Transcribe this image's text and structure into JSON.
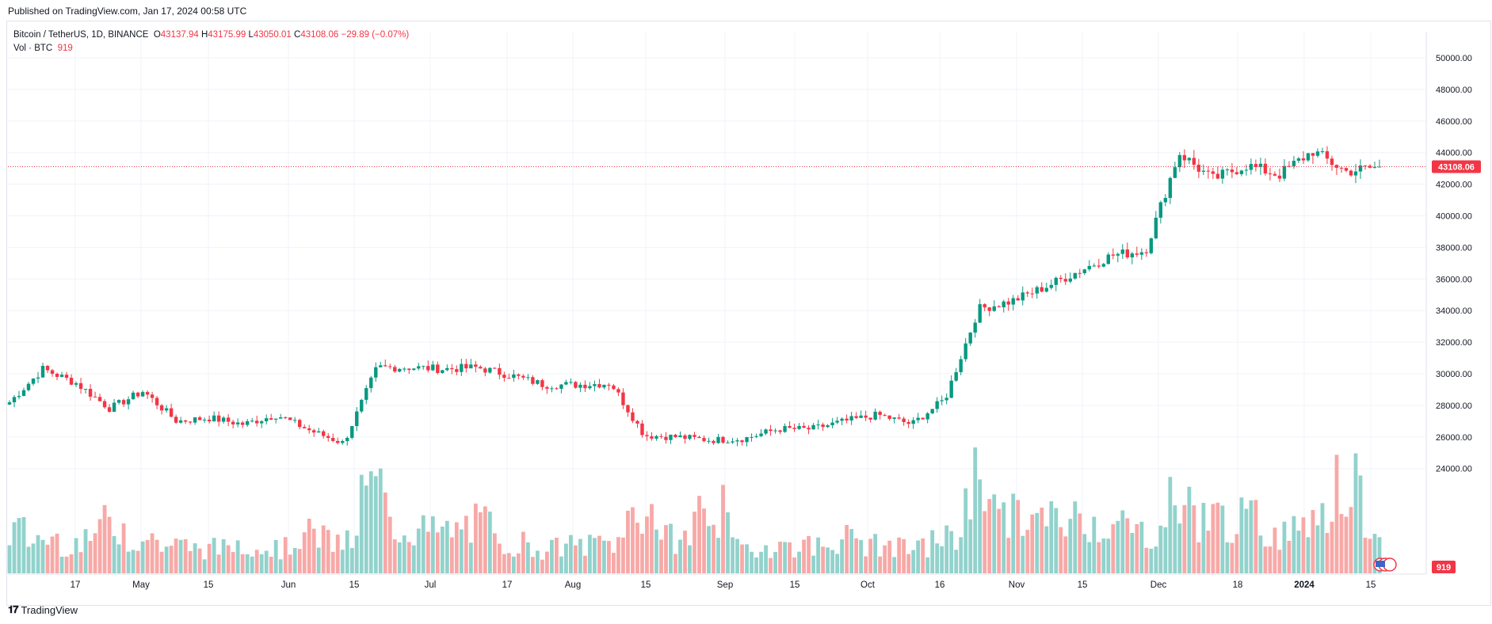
{
  "header": {
    "published": "Published on TradingView.com, Jan 17, 2024 00:58 UTC"
  },
  "legend": {
    "symbol": "Bitcoin / TetherUS, 1D, BINANCE",
    "o_label": "O",
    "o_value": "43137.94",
    "h_label": "H",
    "h_value": "43175.99",
    "l_label": "L",
    "l_value": "43050.01",
    "c_label": "C",
    "c_value": "43108.06",
    "change": "−29.89 (−0.07%)",
    "vol_label": "Vol · BTC",
    "vol_value": "919"
  },
  "price_axis": {
    "ticks": [
      "50000.00",
      "48000.00",
      "46000.00",
      "44000.00",
      "42000.00",
      "40000.00",
      "38000.00",
      "36000.00",
      "34000.00",
      "32000.00",
      "30000.00",
      "28000.00",
      "26000.00",
      "24000.00"
    ],
    "last_price_label": "43108.06",
    "last_volume_label": "919"
  },
  "time_axis": {
    "ticks": [
      "17",
      "May",
      "15",
      "Jun",
      "15",
      "Jul",
      "17",
      "Aug",
      "15",
      "Sep",
      "15",
      "Oct",
      "16",
      "Nov",
      "15",
      "Dec",
      "18",
      "2024",
      "15"
    ],
    "bold_ticks": [
      "2024"
    ]
  },
  "footer": {
    "brand": "TradingView"
  },
  "colors": {
    "up": "#089981",
    "down": "#f23645",
    "up_vol": "#92d2cc",
    "down_vol": "#f7a9a7",
    "grid": "#f0f3fa",
    "last_line": "#f23645"
  },
  "chart_data": {
    "type": "candlestick",
    "title": "Bitcoin / TetherUS, 1D, BINANCE",
    "x_range": [
      "2023-04-03",
      "2024-01-16"
    ],
    "ylim": [
      23500,
      50600
    ],
    "grid": true,
    "last_close": 43108.06,
    "volume_panel": true,
    "series": [
      {
        "name": "price (daily close, approx.)",
        "dates": [
          "2023-04-03",
          "2023-04-10",
          "2023-04-17",
          "2023-04-24",
          "2023-05-01",
          "2023-05-08",
          "2023-05-15",
          "2023-05-22",
          "2023-05-29",
          "2023-06-05",
          "2023-06-12",
          "2023-06-19",
          "2023-06-26",
          "2023-07-03",
          "2023-07-10",
          "2023-07-17",
          "2023-07-24",
          "2023-07-31",
          "2023-08-07",
          "2023-08-14",
          "2023-08-21",
          "2023-08-28",
          "2023-09-04",
          "2023-09-11",
          "2023-09-18",
          "2023-09-25",
          "2023-10-02",
          "2023-10-09",
          "2023-10-16",
          "2023-10-23",
          "2023-10-30",
          "2023-11-06",
          "2023-11-13",
          "2023-11-20",
          "2023-11-27",
          "2023-12-04",
          "2023-12-11",
          "2023-12-18",
          "2023-12-25",
          "2024-01-01",
          "2024-01-08",
          "2024-01-15"
        ],
        "values": [
          28200,
          30300,
          29400,
          27800,
          28900,
          27000,
          27200,
          26800,
          27400,
          26400,
          25600,
          30400,
          30400,
          30300,
          30400,
          29900,
          29300,
          29300,
          29400,
          26100,
          26000,
          25800,
          25900,
          26500,
          26500,
          27000,
          27400,
          26800,
          28400,
          34100,
          34600,
          35500,
          36500,
          37500,
          37800,
          44000,
          42300,
          43200,
          42600,
          44100,
          42800,
          43108
        ]
      },
      {
        "name": "volume (approx.)",
        "values": [
          30,
          25,
          22,
          35,
          25,
          20,
          18,
          22,
          18,
          28,
          22,
          60,
          32,
          30,
          35,
          22,
          18,
          20,
          22,
          45,
          25,
          45,
          18,
          20,
          20,
          25,
          20,
          18,
          25,
          70,
          40,
          38,
          40,
          35,
          30,
          50,
          40,
          38,
          30,
          45,
          60,
          20
        ]
      }
    ]
  }
}
